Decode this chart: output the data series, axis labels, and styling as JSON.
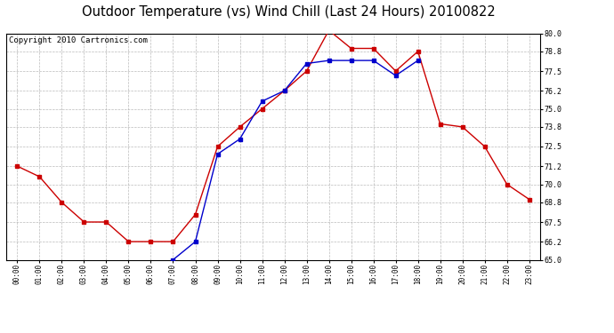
{
  "title": "Outdoor Temperature (vs) Wind Chill (Last 24 Hours) 20100822",
  "copyright_text": "Copyright 2010 Cartronics.com",
  "x_labels": [
    "00:00",
    "01:00",
    "02:00",
    "03:00",
    "04:00",
    "05:00",
    "06:00",
    "07:00",
    "08:00",
    "09:00",
    "10:00",
    "11:00",
    "12:00",
    "13:00",
    "14:00",
    "15:00",
    "16:00",
    "17:00",
    "18:00",
    "19:00",
    "20:00",
    "21:00",
    "22:00",
    "23:00"
  ],
  "temp_red": [
    71.2,
    70.5,
    68.8,
    67.5,
    67.5,
    66.2,
    66.2,
    66.2,
    68.0,
    72.5,
    73.8,
    75.0,
    76.2,
    77.5,
    80.2,
    79.0,
    79.0,
    77.5,
    78.8,
    74.0,
    73.8,
    72.5,
    70.0,
    69.0
  ],
  "wind_chill_blue": [
    null,
    null,
    null,
    null,
    null,
    null,
    null,
    65.0,
    66.2,
    72.0,
    73.0,
    75.5,
    76.2,
    78.0,
    78.2,
    78.2,
    78.2,
    77.2,
    78.2,
    null,
    null,
    null,
    null,
    null
  ],
  "ylim": [
    65.0,
    80.0
  ],
  "yticks": [
    65.0,
    66.2,
    67.5,
    68.8,
    70.0,
    71.2,
    72.5,
    73.8,
    75.0,
    76.2,
    77.5,
    78.8,
    80.0
  ],
  "red_color": "#cc0000",
  "blue_color": "#0000cc",
  "bg_color": "#ffffff",
  "grid_color": "#aaaaaa",
  "title_fontsize": 10.5,
  "copyright_fontsize": 6.5
}
